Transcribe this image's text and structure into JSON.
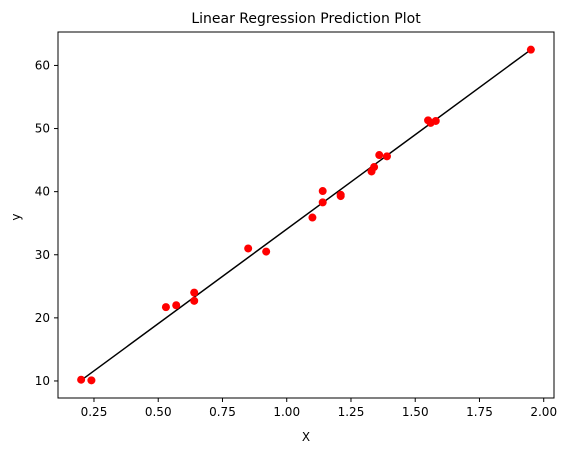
{
  "chart_data": {
    "type": "scatter",
    "title": "Linear Regression Prediction Plot",
    "xlabel": "X",
    "ylabel": "y",
    "xlim": [
      0.11,
      2.04
    ],
    "ylim": [
      7.3,
      65.3
    ],
    "xticks": [
      0.25,
      0.5,
      0.75,
      1.0,
      1.25,
      1.5,
      1.75,
      2.0
    ],
    "xtick_labels": [
      "0.25",
      "0.50",
      "0.75",
      "1.00",
      "1.25",
      "1.50",
      "1.75",
      "2.00"
    ],
    "yticks": [
      10,
      20,
      30,
      40,
      50,
      60
    ],
    "ytick_labels": [
      "10",
      "20",
      "30",
      "40",
      "50",
      "60"
    ],
    "grid": false,
    "series": [
      {
        "type": "scatter",
        "color": "#ff0000",
        "points": [
          {
            "x": 0.2,
            "y": 10.2
          },
          {
            "x": 0.24,
            "y": 10.1
          },
          {
            "x": 0.53,
            "y": 21.7
          },
          {
            "x": 0.57,
            "y": 22.0
          },
          {
            "x": 0.64,
            "y": 24.0
          },
          {
            "x": 0.64,
            "y": 22.7
          },
          {
            "x": 0.85,
            "y": 31.0
          },
          {
            "x": 0.92,
            "y": 30.5
          },
          {
            "x": 1.1,
            "y": 35.9
          },
          {
            "x": 1.14,
            "y": 40.1
          },
          {
            "x": 1.14,
            "y": 38.3
          },
          {
            "x": 1.21,
            "y": 39.5
          },
          {
            "x": 1.21,
            "y": 39.3
          },
          {
            "x": 1.33,
            "y": 43.2
          },
          {
            "x": 1.34,
            "y": 43.9
          },
          {
            "x": 1.36,
            "y": 45.8
          },
          {
            "x": 1.39,
            "y": 45.6
          },
          {
            "x": 1.55,
            "y": 51.3
          },
          {
            "x": 1.56,
            "y": 50.9
          },
          {
            "x": 1.58,
            "y": 51.2
          },
          {
            "x": 1.95,
            "y": 62.5
          }
        ]
      },
      {
        "type": "line",
        "color": "#000000",
        "points": [
          {
            "x": 0.2,
            "y": 10.1
          },
          {
            "x": 1.95,
            "y": 62.5
          }
        ]
      }
    ]
  }
}
